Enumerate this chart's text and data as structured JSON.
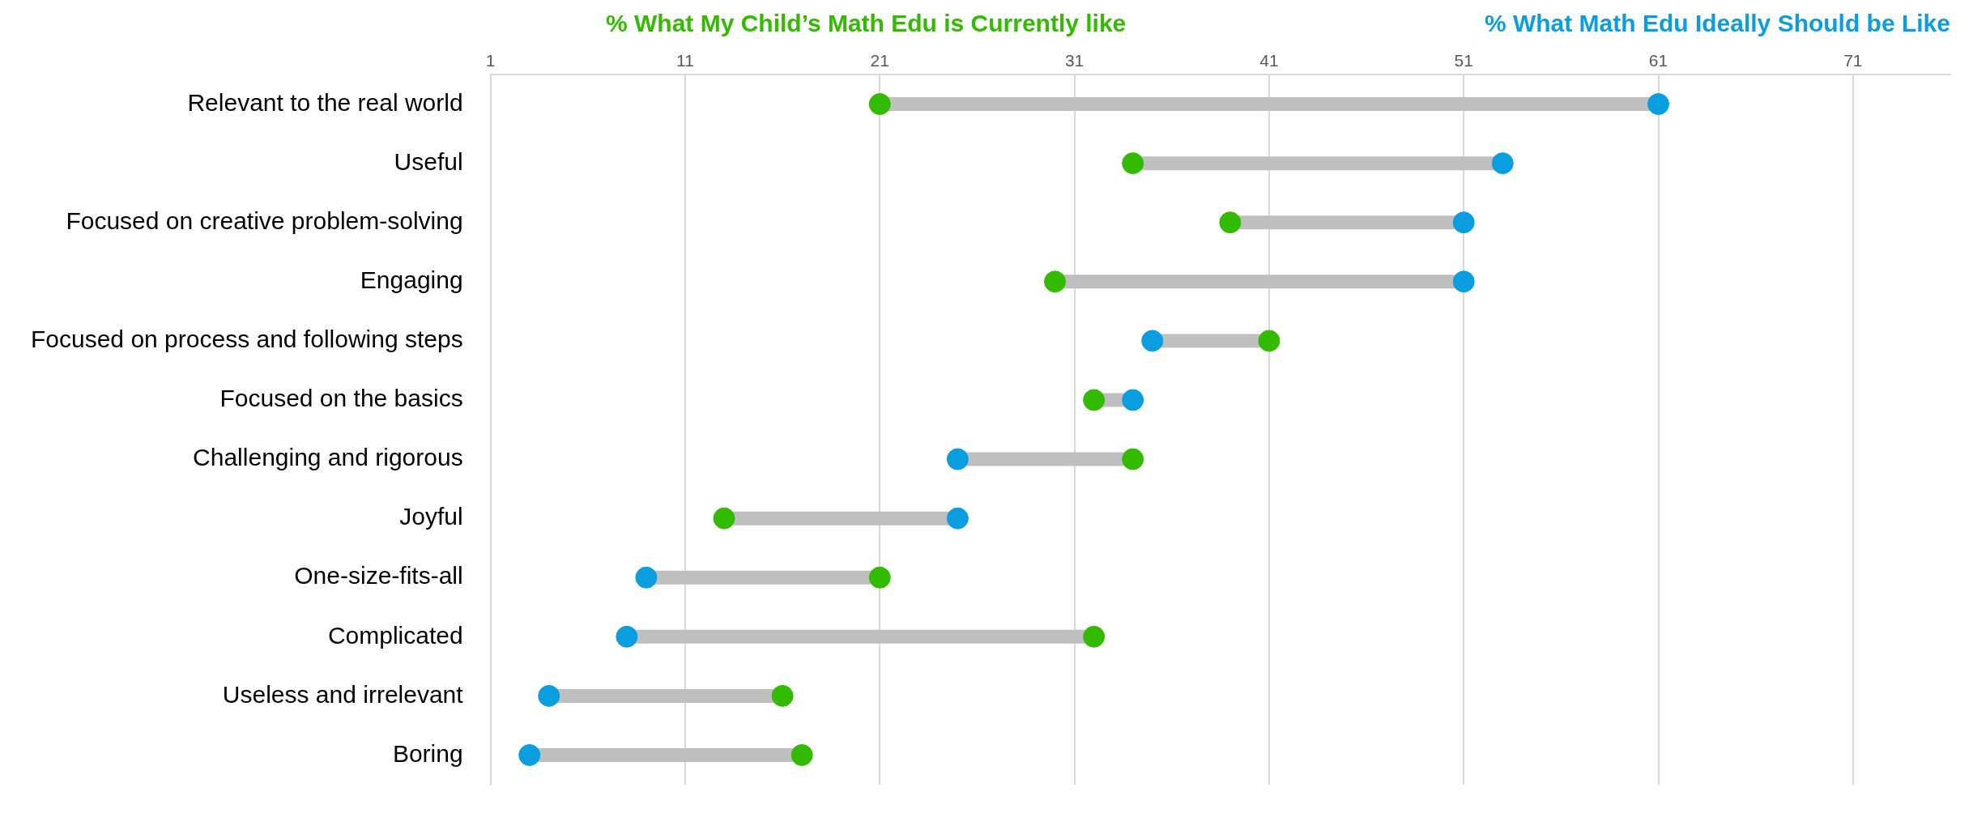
{
  "chart_data": {
    "type": "scatter",
    "orientation": "horizontal",
    "marker": "circle",
    "grid": "x",
    "legend": "top",
    "categories": [
      "Relevant to the real world",
      "Useful",
      "Focused on creative problem-solving",
      "Engaging",
      "Focused on process and following steps",
      "Focused on the basics",
      "Challenging and rigorous",
      "Joyful",
      "One-size-fits-all",
      "Complicated",
      "Useless and irrelevant",
      "Boring"
    ],
    "xlim": [
      1,
      76
    ],
    "xticks": [
      1,
      11,
      21,
      31,
      41,
      51,
      61,
      71
    ],
    "series": [
      {
        "name": "% What My Child’s Math Edu is Currently like",
        "color": "#33bb00",
        "values": [
          21,
          34,
          39,
          30,
          41,
          32,
          34,
          13,
          21,
          32,
          16,
          17
        ]
      },
      {
        "name": "% What Math Edu Ideally Should be Like",
        "color": "#0a9ee0",
        "values": [
          61,
          53,
          51,
          51,
          35,
          34,
          25,
          25,
          9,
          8,
          4,
          3
        ]
      }
    ]
  }
}
